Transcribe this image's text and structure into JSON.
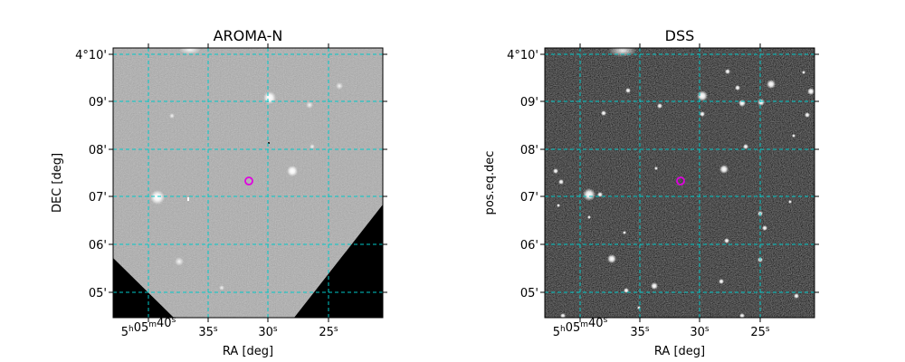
{
  "chart_data": [
    {
      "type": "sky-image",
      "title": "AROMA-N",
      "xlabel": "RA [deg]",
      "ylabel": "DEC [deg]",
      "x_ticks": [
        {
          "h": "5",
          "m": "05",
          "s": "40"
        },
        {
          "s": "35"
        },
        {
          "s": "30"
        },
        {
          "s": "25"
        }
      ],
      "y_ticks": [
        "4°10'",
        "09'",
        "08'",
        "07'",
        "06'",
        "05'"
      ],
      "grid": true,
      "grid_color": "#00c8c8",
      "marker_color": "#e000e0",
      "background": "grey",
      "masked_corners": true
    },
    {
      "type": "sky-image",
      "title": "DSS",
      "xlabel": "RA [deg]",
      "ylabel": "pos.eq.dec",
      "x_ticks": [
        {
          "h": "5",
          "m": "05",
          "s": "40"
        },
        {
          "s": "35"
        },
        {
          "s": "30"
        },
        {
          "s": "25"
        }
      ],
      "y_ticks": [
        "4°10'",
        "09'",
        "08'",
        "07'",
        "06'",
        "05'"
      ],
      "grid": true,
      "grid_color": "#00c8c8",
      "marker_color": "#e000e0",
      "background": "dark",
      "masked_corners": false
    }
  ]
}
